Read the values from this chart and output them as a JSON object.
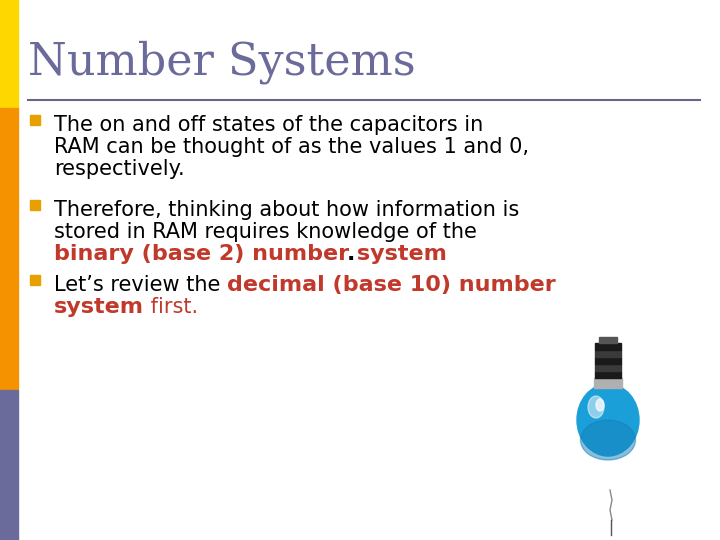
{
  "title": "Number Systems",
  "title_color": "#6B6B9B",
  "title_fontsize": 32,
  "background_color": "#FFFFFF",
  "separator_color": "#666688",
  "bullet_color": "#E8A000",
  "left_bar_yellow": "#FFD700",
  "left_bar_orange": "#F59200",
  "left_bar_purple": "#6B6B9B",
  "left_bar_width": 18,
  "bullet1_lines": [
    "The on and off states of the capacitors in",
    "RAM can be thought of as the values 1 and 0,",
    "respectively."
  ],
  "bullet2_lines_plain": [
    "Therefore, thinking about how information is",
    "stored in RAM requires knowledge of the"
  ],
  "bullet2_bold_red": "binary (base 2) number system",
  "bullet2_period": ".",
  "bullet3_plain_start": "Let’s review the ",
  "bullet3_bold_red1": "decimal (base 10) number",
  "bullet3_bold_red2": "system",
  "bullet3_plain_end": " first.",
  "text_color": "#000000",
  "red_color": "#C0392B",
  "fontsize": 15
}
